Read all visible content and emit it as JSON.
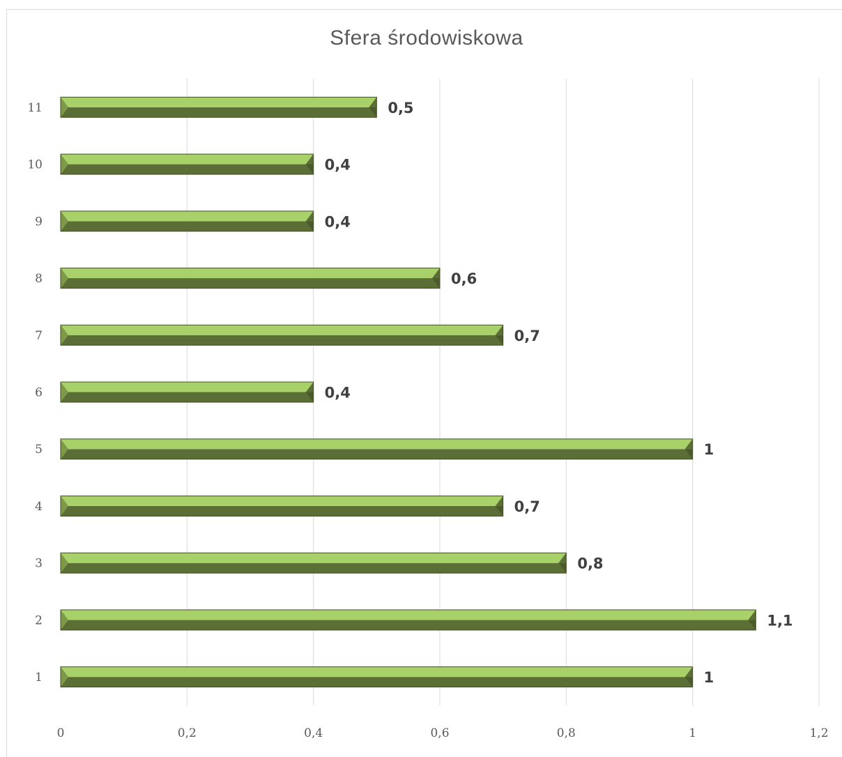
{
  "chart_data": {
    "type": "bar",
    "orientation": "horizontal",
    "title": "Sfera środowiskowa",
    "categories": [
      "1",
      "2",
      "3",
      "4",
      "5",
      "6",
      "7",
      "8",
      "9",
      "10",
      "11"
    ],
    "values": [
      1,
      1.1,
      0.8,
      0.7,
      1,
      0.4,
      0.7,
      0.6,
      0.4,
      0.4,
      0.5
    ],
    "data_labels": [
      "1",
      "1,1",
      "0,8",
      "0,7",
      "1",
      "0,4",
      "0,7",
      "0,6",
      "0,4",
      "0,4",
      "0,5"
    ],
    "x_ticks": [
      0,
      0.2,
      0.4,
      0.6,
      0.8,
      1,
      1.2
    ],
    "x_tick_labels": [
      "0",
      "0,2",
      "0,4",
      "0,6",
      "0,8",
      "1",
      "1,2"
    ],
    "xlim": [
      0,
      1.2
    ],
    "xlabel": "",
    "ylabel": "",
    "grid": true,
    "legend": "none",
    "colors": {
      "bar_top": "#a9d16a",
      "bar_bottom": "#5b6e35",
      "bar_edge": "#3f4f23",
      "grid": "#d9d9d9",
      "tick_text": "#595959",
      "label_text": "#404040",
      "title_text": "#595959"
    }
  }
}
